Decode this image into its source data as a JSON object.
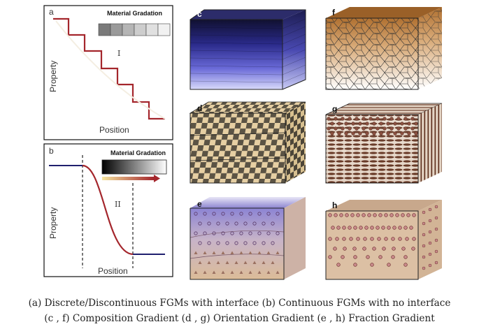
{
  "panels": {
    "a": {
      "letter": "a",
      "legend_title": "Material Gradation",
      "region_label": "I",
      "xlabel": "Position",
      "ylabel": "Property",
      "swatches": [
        "#7a7a7a",
        "#9a9a9a",
        "#b5b5b5",
        "#cdcdcd",
        "#e0e0e0",
        "#f1f1f1"
      ]
    },
    "b": {
      "letter": "b",
      "legend_title": "Material Gradation",
      "region_label": "II",
      "xlabel": "Position",
      "ylabel": "Property"
    },
    "c": {
      "letter": "c"
    },
    "d": {
      "letter": "d"
    },
    "e": {
      "letter": "e"
    },
    "f": {
      "letter": "f"
    },
    "g": {
      "letter": "g"
    },
    "h": {
      "letter": "h"
    }
  },
  "colors": {
    "curve": "#a4262c",
    "flat_line": "#1f1f6e",
    "blue_top": "#14143c",
    "blue_bottom": "#d6d8f8",
    "tan": "#d8bca0",
    "brown": "#7a4a2c",
    "checker_dark": "#5b5344",
    "checker_light": "#e6cfa3"
  },
  "caption": {
    "line1": "(a)  Discrete/Discontinuous FGMs with interface    (b)  Continuous FGMs with no interface",
    "line2": "(c , f) Composition Gradient   (d , g) Orientation Gradient    (e , h) Fraction Gradient"
  }
}
